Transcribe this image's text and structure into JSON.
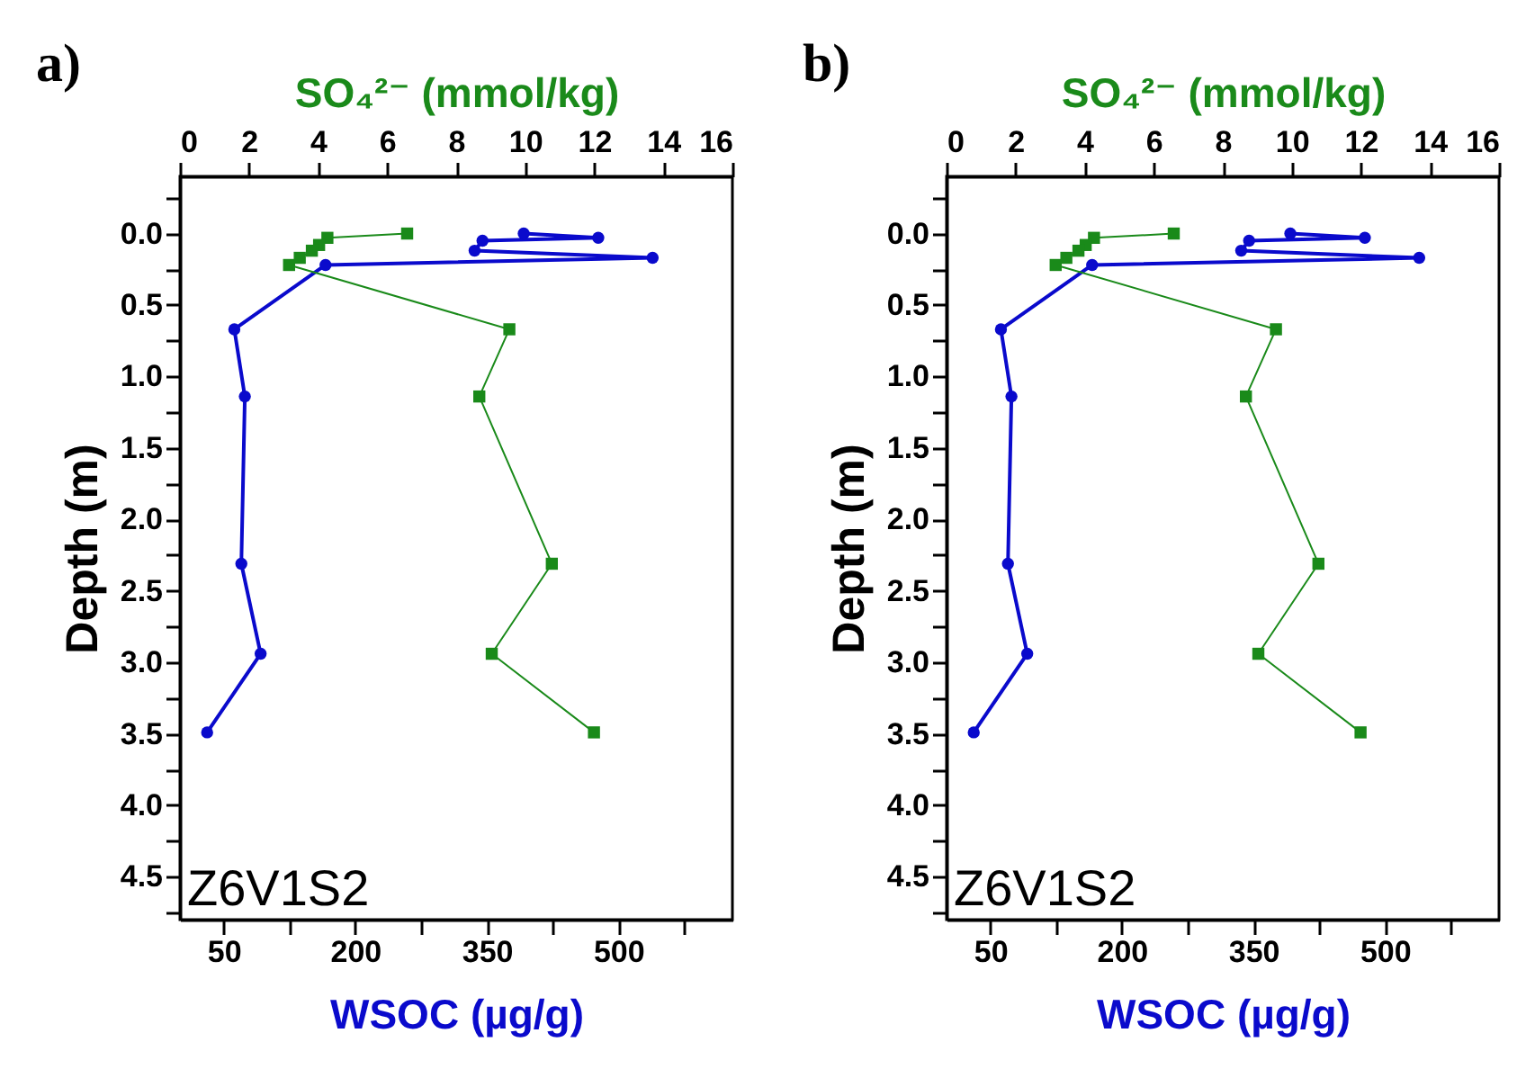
{
  "chart_data": [
    {
      "type": "line",
      "title": "a)",
      "xlabel": "WSOC (µg/g)",
      "x2label": "SO₄²⁻ (mmol/kg)",
      "ylabel": "Depth (m)",
      "annotations": [
        "Z6V1S2"
      ],
      "xlim": [
        0,
        630
      ],
      "xticks": [
        50,
        {
          "value": 125,
          "label": null
        },
        200,
        {
          "value": 275,
          "label": null
        },
        350,
        {
          "value": 425,
          "label": null
        },
        500,
        {
          "value": 575,
          "label": null
        }
      ],
      "x2lim": [
        0,
        16
      ],
      "x2ticks": [
        0,
        2,
        4,
        6,
        8,
        10,
        12,
        14,
        16
      ],
      "ylim": [
        4.8,
        -0.4
      ],
      "yticks": [
        {
          "value": -0.25,
          "label": null
        },
        {
          "value": 0,
          "label": "0.0"
        },
        {
          "value": 0.25,
          "label": null
        },
        0.5,
        {
          "value": 0.75,
          "label": null
        },
        {
          "value": 1,
          "label": "1.0"
        },
        {
          "value": 1.25,
          "label": null
        },
        1.5,
        {
          "value": 1.75,
          "label": null
        },
        {
          "value": 2,
          "label": "2.0"
        },
        {
          "value": 2.25,
          "label": null
        },
        2.5,
        {
          "value": 2.75,
          "label": null
        },
        {
          "value": 3,
          "label": "3.0"
        },
        {
          "value": 3.25,
          "label": null
        },
        3.5,
        {
          "value": 3.75,
          "label": null
        },
        {
          "value": 4,
          "label": "4.0"
        },
        {
          "value": 4.25,
          "label": null
        },
        4.5,
        {
          "value": 4.75,
          "label": null
        }
      ],
      "series": [
        {
          "color": "#0a0acc",
          "marker": "circle",
          "x": [
            392,
            477,
            345,
            336,
            539,
            166,
            62,
            74,
            70,
            92,
            31
          ],
          "values": [
            0,
            0.03,
            0.05,
            0.12,
            0.17,
            0.22,
            0.67,
            1.14,
            2.31,
            2.94,
            3.49
          ]
        },
        {
          "color": "#1a8a1a",
          "marker": "square",
          "axis": "x2",
          "x": [
            6.58,
            4.27,
            4.03,
            3.82,
            3.47,
            3.16,
            9.54,
            8.67,
            10.77,
            9.03,
            11.99
          ],
          "values": [
            0,
            0.03,
            0.08,
            0.12,
            0.17,
            0.22,
            0.67,
            1.14,
            2.31,
            2.94,
            3.49
          ]
        }
      ]
    },
    {
      "type": "line",
      "title": "b)",
      "xlabel": "WSOC (µg/g)",
      "x2label": "SO₄²⁻ (mmol/kg)",
      "ylabel": "Depth (m)",
      "annotations": [
        "Z6V1S2"
      ],
      "xlim": [
        0,
        630
      ],
      "xticks": [
        50,
        {
          "value": 125,
          "label": null
        },
        200,
        {
          "value": 275,
          "label": null
        },
        350,
        {
          "value": 425,
          "label": null
        },
        500,
        {
          "value": 575,
          "label": null
        }
      ],
      "x2lim": [
        0,
        16
      ],
      "x2ticks": [
        0,
        2,
        4,
        6,
        8,
        10,
        12,
        14,
        16
      ],
      "ylim": [
        4.8,
        -0.4
      ],
      "yticks": [
        {
          "value": -0.25,
          "label": null
        },
        {
          "value": 0,
          "label": "0.0"
        },
        {
          "value": 0.25,
          "label": null
        },
        0.5,
        {
          "value": 0.75,
          "label": null
        },
        {
          "value": 1,
          "label": "1.0"
        },
        {
          "value": 1.25,
          "label": null
        },
        1.5,
        {
          "value": 1.75,
          "label": null
        },
        {
          "value": 2,
          "label": "2.0"
        },
        {
          "value": 2.25,
          "label": null
        },
        2.5,
        {
          "value": 2.75,
          "label": null
        },
        {
          "value": 3,
          "label": "3.0"
        },
        {
          "value": 3.25,
          "label": null
        },
        3.5,
        {
          "value": 3.75,
          "label": null
        },
        {
          "value": 4,
          "label": "4.0"
        },
        {
          "value": 4.25,
          "label": null
        },
        4.5,
        {
          "value": 4.75,
          "label": null
        }
      ],
      "series": [
        {
          "color": "#0a0acc",
          "marker": "circle",
          "x": [
            392,
            477,
            345,
            336,
            539,
            166,
            62,
            74,
            70,
            92,
            31
          ],
          "values": [
            0,
            0.03,
            0.05,
            0.12,
            0.17,
            0.22,
            0.67,
            1.14,
            2.31,
            2.94,
            3.49
          ]
        },
        {
          "color": "#1a8a1a",
          "marker": "square",
          "axis": "x2",
          "x": [
            6.58,
            4.27,
            4.03,
            3.82,
            3.47,
            3.16,
            9.54,
            8.67,
            10.77,
            9.03,
            11.99
          ],
          "values": [
            0,
            0.03,
            0.08,
            0.12,
            0.17,
            0.22,
            0.67,
            1.14,
            2.31,
            2.94,
            3.49
          ]
        }
      ]
    }
  ]
}
